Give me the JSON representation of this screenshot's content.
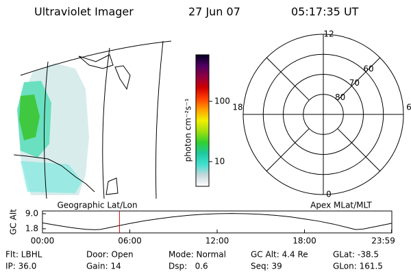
{
  "header": {
    "title": "Ultraviolet Imager",
    "date": "27 Jun 07",
    "time": "05:17:35 UT"
  },
  "map": {
    "label": "Geographic Lat/Lon"
  },
  "colorbar": {
    "label": "photon cm⁻²s⁻¹",
    "log_scale": true,
    "clim": [
      3.9,
      590
    ],
    "ticks": [
      10,
      100
    ],
    "colors": [
      "#ffffff",
      "#c8d8dc",
      "#40e0d0",
      "#20c8a0",
      "#30d030",
      "#a0e010",
      "#f0f000",
      "#ffa000",
      "#ff4000",
      "#d00000",
      "#900040",
      "#500060",
      "#000020"
    ]
  },
  "polar": {
    "label": "Apex MLat/MLT",
    "lat_range": [
      50,
      90
    ],
    "mlt_labels": [
      {
        "value": 12,
        "label": "12"
      },
      {
        "value": 18,
        "label": "18"
      },
      {
        "value": 6,
        "label": "6"
      },
      {
        "value": 0,
        "label": "0"
      }
    ],
    "lat_labels": [
      60,
      70,
      80
    ]
  },
  "altitude_plot": {
    "ylabel": "GC Alt",
    "xlim": [
      0,
      24
    ],
    "ylim": [
      -0.2,
      10.3
    ],
    "yticks": [
      {
        "value": 9,
        "label": "9.0"
      },
      1.8
    ],
    "xticks": [
      {
        "value": 0,
        "label": "00:00"
      },
      {
        "value": 6,
        "label": "06:00"
      },
      {
        "value": 12,
        "label": "12:00"
      },
      {
        "value": 18,
        "label": "18:00"
      },
      {
        "value": 23.98,
        "label": "23:59"
      }
    ],
    "x": [
      0,
      1,
      2,
      3,
      3.6,
      4,
      5,
      6,
      7,
      8,
      9,
      10,
      11,
      12,
      13,
      14,
      15,
      16,
      17,
      18,
      19,
      20,
      21,
      21.5,
      22,
      23,
      23.98
    ],
    "values": [
      4.6,
      3.4,
      2.3,
      1.5,
      1.3,
      1.5,
      2.9,
      4.3,
      5.6,
      6.6,
      7.5,
      8.2,
      8.7,
      9.0,
      9.1,
      9.0,
      8.7,
      8.2,
      7.5,
      6.5,
      5.4,
      4.0,
      2.3,
      1.4,
      1.6,
      3.0,
      4.4
    ],
    "color": "#000000",
    "marker_x": 5.29,
    "marker_color": "#e00000"
  },
  "status": [
    [
      "Flt: LBHL",
      "Door: Open",
      "Mode: Normal",
      "GC Alt: 4.4 Re",
      "GLat: -38.5"
    ],
    [
      "IP: 36.0",
      "Gain: 14",
      "Dsp:   0.6",
      "Seq: 39",
      "GLon: 161.5"
    ]
  ]
}
